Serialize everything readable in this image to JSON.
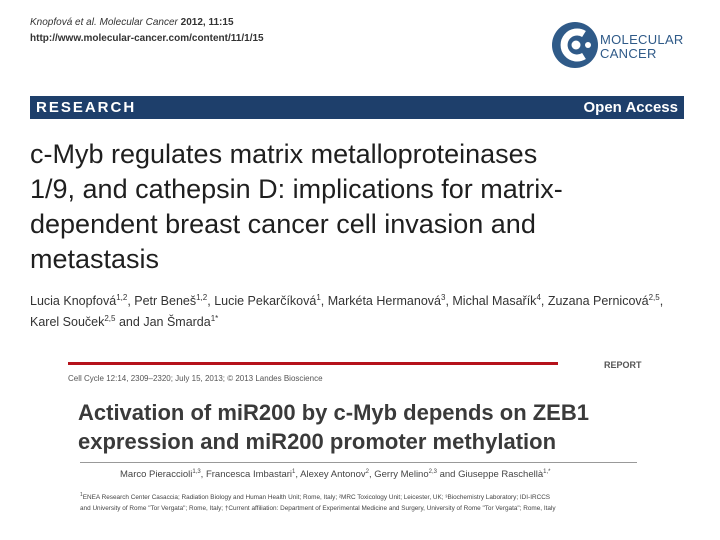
{
  "paper1": {
    "citation_authors": "Knopfová",
    "citation_etal": "et al.",
    "citation_journal": "Molecular Cancer",
    "citation_vol": "2012, 11:15",
    "url": "http://www.molecular-cancer.com/content/11/1/15",
    "logo": {
      "line1": "MOLECULAR",
      "line2": "CANCER",
      "icon": "molecular-cancer-logo-icon",
      "color": "#2f5a88"
    },
    "banner": {
      "left": "RESEARCH",
      "right": "Open Access",
      "color": "#1e3f6b"
    },
    "title_lines": [
      "c-Myb regulates matrix metalloproteinases",
      "1/9, and cathepsin D: implications for matrix-",
      "dependent breast cancer cell invasion and",
      "metastasis"
    ],
    "authors": [
      {
        "name": "Lucia Knopfová",
        "sup": "1,2"
      },
      {
        "name": "Petr Beneš",
        "sup": "1,2"
      },
      {
        "name": "Lucie Pekarčíková",
        "sup": "1"
      },
      {
        "name": "Markéta Hermanová",
        "sup": "3"
      },
      {
        "name": "Michal Masařík",
        "sup": "4"
      },
      {
        "name": "Zuzana Pernicová",
        "sup": "2,5"
      },
      {
        "name": "Karel Souček",
        "sup": "2,5"
      },
      {
        "name": "Jan Šmarda",
        "sup": "1*"
      }
    ],
    "authors_and": "and"
  },
  "paper2": {
    "report_label": "REPORT",
    "journal_line": "Cell Cycle 12:14, 2309–2320; July 15, 2013; © 2013 Landes Bioscience",
    "title_lines": [
      "Activation of miR200 by c-Myb depends on ZEB1",
      "expression and miR200 promoter methylation"
    ],
    "accent_color": "#b5121b",
    "authors": [
      {
        "name": "Marco Pieraccioli",
        "sup": "1,3"
      },
      {
        "name": "Francesca Imbastari",
        "sup": "1"
      },
      {
        "name": "Alexey Antonov",
        "sup": "2"
      },
      {
        "name": "Gerry Melino",
        "sup": "2,3"
      },
      {
        "name": "Giuseppe Raschellà",
        "sup": "1,*"
      }
    ],
    "authors_and": "and",
    "affiliation_line1": "ENEA Research Center Casaccia; Radiation Biology and Human Health Unit; Rome, Italy; ²MRC Toxicology Unit; Leicester, UK; ³Biochemistry Laboratory; IDI-IRCCS",
    "affiliation_sup1": "1",
    "affiliation_line2": "and University of Rome \"Tor Vergata\"; Rome, Italy; †Current affiliation: Department of Experimental Medicine and Surgery, University of Rome \"Tor Vergata\"; Rome, Italy"
  }
}
